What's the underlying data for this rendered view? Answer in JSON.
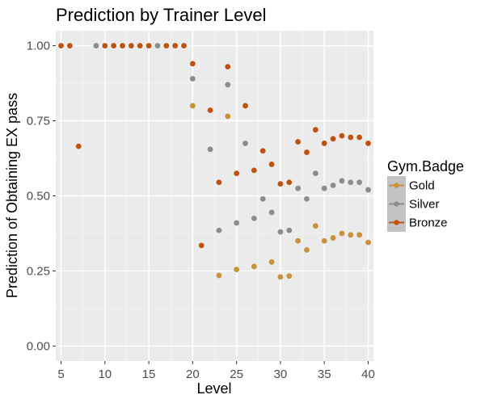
{
  "chart_data": {
    "type": "scatter",
    "title": "Prediction by Trainer Level",
    "xlabel": "Level",
    "ylabel": "Prediction of Obtaining EX pass",
    "xlim": [
      4.4,
      40.6
    ],
    "ylim": [
      -0.05,
      1.05
    ],
    "xticks": [
      5,
      10,
      15,
      20,
      25,
      30,
      35,
      40
    ],
    "yticks": [
      0,
      0.25,
      0.5,
      0.75,
      1.0
    ],
    "ytick_labels": [
      "0.00",
      "0.25",
      "0.50",
      "0.75",
      "1.00"
    ],
    "grid": true,
    "legend": {
      "title": "Gym.Badge",
      "position": "right"
    },
    "series": [
      {
        "name": "Gold",
        "color": "#c8913a",
        "points": [
          [
            20,
            0.8
          ],
          [
            23,
            0.235
          ],
          [
            24,
            0.765
          ],
          [
            25,
            0.255
          ],
          [
            27,
            0.265
          ],
          [
            29,
            0.28
          ],
          [
            30,
            0.23
          ],
          [
            31,
            0.233
          ],
          [
            32,
            0.35
          ],
          [
            33,
            0.32
          ],
          [
            34,
            0.4
          ],
          [
            35,
            0.35
          ],
          [
            36,
            0.36
          ],
          [
            37,
            0.375
          ],
          [
            38,
            0.37
          ],
          [
            39,
            0.37
          ],
          [
            40,
            0.345
          ]
        ]
      },
      {
        "name": "Silver",
        "color": "#8c8c8c",
        "points": [
          [
            9,
            1.0
          ],
          [
            16,
            1.0
          ],
          [
            20,
            0.89
          ],
          [
            22,
            0.655
          ],
          [
            23,
            0.385
          ],
          [
            24,
            0.87
          ],
          [
            25,
            0.41
          ],
          [
            26,
            0.675
          ],
          [
            27,
            0.425
          ],
          [
            28,
            0.49
          ],
          [
            29,
            0.445
          ],
          [
            30,
            0.38
          ],
          [
            31,
            0.385
          ],
          [
            32,
            0.525
          ],
          [
            33,
            0.49
          ],
          [
            34,
            0.575
          ],
          [
            35,
            0.525
          ],
          [
            36,
            0.535
          ],
          [
            37,
            0.55
          ],
          [
            38,
            0.545
          ],
          [
            39,
            0.545
          ],
          [
            40,
            0.52
          ]
        ]
      },
      {
        "name": "Bronze",
        "color": "#c0520f",
        "points": [
          [
            5,
            1.0
          ],
          [
            6,
            1.0
          ],
          [
            7,
            0.665
          ],
          [
            10,
            1.0
          ],
          [
            11,
            1.0
          ],
          [
            12,
            1.0
          ],
          [
            13,
            1.0
          ],
          [
            14,
            1.0
          ],
          [
            15,
            1.0
          ],
          [
            17,
            1.0
          ],
          [
            18,
            1.0
          ],
          [
            19,
            1.0
          ],
          [
            20,
            0.94
          ],
          [
            21,
            0.335
          ],
          [
            22,
            0.785
          ],
          [
            23,
            0.545
          ],
          [
            24,
            0.93
          ],
          [
            25,
            0.575
          ],
          [
            26,
            0.8
          ],
          [
            27,
            0.585
          ],
          [
            28,
            0.65
          ],
          [
            29,
            0.605
          ],
          [
            30,
            0.54
          ],
          [
            31,
            0.545
          ],
          [
            32,
            0.68
          ],
          [
            33,
            0.645
          ],
          [
            34,
            0.72
          ],
          [
            35,
            0.675
          ],
          [
            36,
            0.69
          ],
          [
            37,
            0.7
          ],
          [
            38,
            0.695
          ],
          [
            39,
            0.695
          ],
          [
            40,
            0.675
          ]
        ]
      }
    ]
  }
}
